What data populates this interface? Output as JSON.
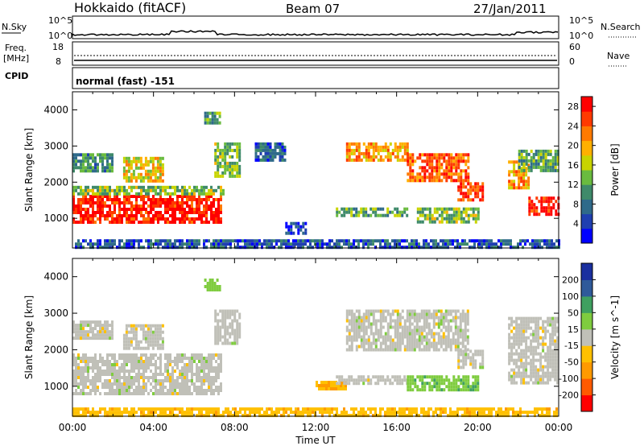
{
  "header": {
    "station": "Hokkaido (fitACF)",
    "beam": "Beam 07",
    "date": "27/Jan/2011"
  },
  "strip": {
    "nsky_label": "N.Sky",
    "nsearch_label": "N.Search",
    "freq_label": "Freq.",
    "freq_unit": "[MHz]",
    "nave_label": "Nave",
    "cpid_label": "CPID",
    "cpid_value": "normal (fast) -151",
    "noise_ticks": [
      "10^5",
      "10^0"
    ],
    "noise_right_ticks": [
      "10^5",
      "10^0"
    ],
    "freq_ticks": [
      "18",
      "8"
    ],
    "nave_ticks": [
      "60",
      "0"
    ]
  },
  "colors": {
    "power": [
      "#0000ff",
      "#1f3fb0",
      "#2f6a8a",
      "#3f8a6a",
      "#6abb3f",
      "#c8d400",
      "#ffb000",
      "#ff7a00",
      "#ff3a00",
      "#ff0000"
    ],
    "velocity": [
      "#ff0000",
      "#ff5a00",
      "#ff9a00",
      "#ffc000",
      "#c0c0b8",
      "#7fcc3f",
      "#3fa060",
      "#2f5a9a",
      "#1a2f9f"
    ]
  },
  "chart_data": [
    {
      "type": "heatmap",
      "title": "Power",
      "xlabel": "Time UT",
      "ylabel": "Slant Range [km]",
      "xlim": [
        "00:00",
        "24:00"
      ],
      "ylim": [
        180,
        4500
      ],
      "x_ticks": [
        "00:00",
        "04:00",
        "08:00",
        "12:00",
        "16:00",
        "20:00",
        "00:00"
      ],
      "y_ticks": [
        1000,
        2000,
        3000,
        4000
      ],
      "colorbar_label": "Power [dB]",
      "colorbar_ticks": [
        4,
        8,
        12,
        16,
        20,
        24,
        28
      ],
      "colorbar_range": [
        0,
        30
      ],
      "regions": [
        {
          "t0": 0.0,
          "t1": 7.3,
          "r0": 900,
          "r1": 1650,
          "value": 28
        },
        {
          "t0": 0.0,
          "t1": 7.5,
          "r0": 1650,
          "r1": 1900,
          "value": 14
        },
        {
          "t0": 0.0,
          "t1": 2.0,
          "r0": 2300,
          "r1": 2800,
          "value": 10
        },
        {
          "t0": 2.5,
          "t1": 4.5,
          "r0": 2000,
          "r1": 2700,
          "value": 18
        },
        {
          "t0": 6.5,
          "t1": 7.3,
          "r0": 3600,
          "r1": 3950,
          "value": 12
        },
        {
          "t0": 7.0,
          "t1": 8.2,
          "r0": 2200,
          "r1": 3100,
          "value": 14
        },
        {
          "t0": 9.0,
          "t1": 10.5,
          "r0": 2600,
          "r1": 3100,
          "value": 6
        },
        {
          "t0": 10.5,
          "t1": 11.5,
          "r0": 600,
          "r1": 900,
          "value": 4
        },
        {
          "t0": 13.0,
          "t1": 16.5,
          "r0": 1100,
          "r1": 1300,
          "value": 12
        },
        {
          "t0": 13.5,
          "t1": 16.5,
          "r0": 2600,
          "r1": 3100,
          "value": 20
        },
        {
          "t0": 16.5,
          "t1": 19.5,
          "r0": 2000,
          "r1": 2800,
          "value": 24
        },
        {
          "t0": 17.0,
          "t1": 20.0,
          "r0": 900,
          "r1": 1300,
          "value": 14
        },
        {
          "t0": 19.0,
          "t1": 20.2,
          "r0": 1500,
          "r1": 2000,
          "value": 26
        },
        {
          "t0": 21.5,
          "t1": 22.5,
          "r0": 1800,
          "r1": 2600,
          "value": 20
        },
        {
          "t0": 22.5,
          "t1": 24.0,
          "r0": 1100,
          "r1": 1600,
          "value": 28
        },
        {
          "t0": 22.0,
          "t1": 24.0,
          "r0": 2300,
          "r1": 2900,
          "value": 12
        },
        {
          "t0": 0.0,
          "t1": 24.0,
          "r0": 180,
          "r1": 420,
          "value": 6
        }
      ]
    },
    {
      "type": "heatmap",
      "title": "Velocity",
      "xlabel": "Time UT",
      "ylabel": "Slant Range [km]",
      "xlim": [
        "00:00",
        "24:00"
      ],
      "ylim": [
        180,
        4500
      ],
      "x_ticks": [
        "00:00",
        "04:00",
        "08:00",
        "12:00",
        "16:00",
        "20:00",
        "00:00"
      ],
      "y_ticks": [
        1000,
        2000,
        3000,
        4000
      ],
      "colorbar_label": "Velocity [m s^-1]",
      "colorbar_ticks": [
        200,
        100,
        50,
        15,
        -15,
        -50,
        -100,
        -200
      ],
      "colorbar_range": [
        -250,
        250
      ],
      "regions": [
        {
          "t0": 0.0,
          "t1": 7.3,
          "r0": 800,
          "r1": 1900,
          "value": 0
        },
        {
          "t0": 0.0,
          "t1": 2.0,
          "r0": 2300,
          "r1": 2800,
          "value": 0
        },
        {
          "t0": 2.5,
          "t1": 4.5,
          "r0": 2000,
          "r1": 2700,
          "value": 0
        },
        {
          "t0": 6.5,
          "t1": 7.3,
          "r0": 3600,
          "r1": 3950,
          "value": 60
        },
        {
          "t0": 7.0,
          "t1": 8.2,
          "r0": 2200,
          "r1": 3100,
          "value": 0
        },
        {
          "t0": 12.0,
          "t1": 13.5,
          "r0": 900,
          "r1": 1150,
          "value": -80
        },
        {
          "t0": 13.0,
          "t1": 16.5,
          "r0": 1100,
          "r1": 1300,
          "value": 0
        },
        {
          "t0": 13.5,
          "t1": 19.5,
          "r0": 2000,
          "r1": 3100,
          "value": 0
        },
        {
          "t0": 16.5,
          "t1": 20.0,
          "r0": 900,
          "r1": 1300,
          "value": 60
        },
        {
          "t0": 19.0,
          "t1": 20.2,
          "r0": 1500,
          "r1": 2000,
          "value": 0
        },
        {
          "t0": 21.5,
          "t1": 24.0,
          "r0": 1100,
          "r1": 2900,
          "value": 0
        },
        {
          "t0": 0.0,
          "t1": 24.0,
          "r0": 180,
          "r1": 420,
          "value": -60
        }
      ]
    }
  ]
}
